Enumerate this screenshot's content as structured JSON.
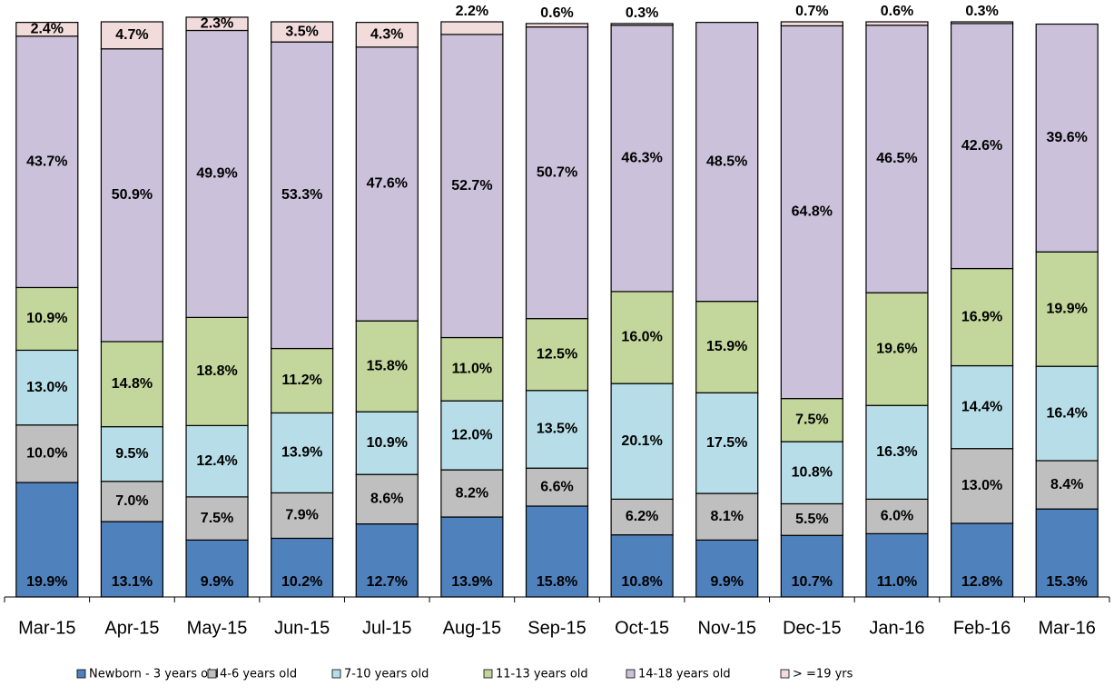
{
  "chart_data": {
    "type": "stacked_bar",
    "categories": [
      "Mar-15",
      "Apr-15",
      "May-15",
      "Jun-15",
      "Jul-15",
      "Aug-15",
      "Sep-15",
      "Oct-15",
      "Nov-15",
      "Dec-15",
      "Jan-16",
      "Feb-16",
      "Mar-16"
    ],
    "ylim": [
      0,
      100
    ],
    "series": [
      {
        "name": "Newborn - 3 years old",
        "color": "#4f81bd",
        "values": [
          19.9,
          13.1,
          9.9,
          10.2,
          12.7,
          13.9,
          15.8,
          10.8,
          9.9,
          10.7,
          11.0,
          12.8,
          15.3
        ],
        "value_labels": [
          "19.9%",
          "13.1%",
          "9.9%",
          "10.2%",
          "12.7%",
          "13.9%",
          "15.8%",
          "10.8%",
          "9.9%",
          "10.7%",
          "11.0%",
          "12.8%",
          "15.3%"
        ]
      },
      {
        "name": "4-6 years old",
        "color": "#bfbfbf",
        "values": [
          10.0,
          7.0,
          7.5,
          7.9,
          8.6,
          8.2,
          6.6,
          6.2,
          8.1,
          5.5,
          6.0,
          13.0,
          8.4
        ],
        "value_labels": [
          "10.0%",
          "7.0%",
          "7.5%",
          "7.9%",
          "8.6%",
          "8.2%",
          "6.6%",
          "6.2%",
          "8.1%",
          "5.5%",
          "6.0%",
          "13.0%",
          "8.4%"
        ]
      },
      {
        "name": "7-10 years old",
        "color": "#b7dee8",
        "values": [
          13.0,
          9.5,
          12.4,
          13.9,
          10.9,
          12.0,
          13.5,
          20.1,
          17.5,
          10.8,
          16.3,
          14.4,
          16.4
        ],
        "value_labels": [
          "13.0%",
          "9.5%",
          "12.4%",
          "13.9%",
          "10.9%",
          "12.0%",
          "13.5%",
          "20.1%",
          "17.5%",
          "10.8%",
          "16.3%",
          "14.4%",
          "16.4%"
        ]
      },
      {
        "name": "11-13 years old",
        "color": "#c3d69b",
        "values": [
          10.9,
          14.8,
          18.8,
          11.2,
          15.8,
          11.0,
          12.5,
          16.0,
          15.9,
          7.5,
          19.6,
          16.9,
          19.9
        ],
        "value_labels": [
          "10.9%",
          "14.8%",
          "18.8%",
          "11.2%",
          "15.8%",
          "11.0%",
          "12.5%",
          "16.0%",
          "15.9%",
          "7.5%",
          "19.6%",
          "16.9%",
          "19.9%"
        ]
      },
      {
        "name": "14-18  years old",
        "color": "#ccc1da",
        "values": [
          43.7,
          50.9,
          49.9,
          53.3,
          47.6,
          52.7,
          50.7,
          46.3,
          48.5,
          64.8,
          46.5,
          42.6,
          39.6
        ],
        "value_labels": [
          "43.7%",
          "50.9%",
          "49.9%",
          "53.3%",
          "47.6%",
          "52.7%",
          "50.7%",
          "46.3%",
          "48.5%",
          "64.8%",
          "46.5%",
          "42.6%",
          "39.6%"
        ]
      },
      {
        "name": "> =19 yrs",
        "color": "#f2dcdb",
        "values": [
          2.4,
          4.7,
          2.3,
          3.5,
          4.3,
          2.2,
          0.6,
          0.3,
          null,
          0.7,
          0.6,
          0.3,
          null
        ],
        "value_labels": [
          "2.4%",
          "4.7%",
          "2.3%",
          "3.5%",
          "4.3%",
          "2.2%",
          "0.6%",
          "0.3%",
          null,
          "0.7%",
          "0.6%",
          "0.3%",
          null
        ]
      }
    ]
  }
}
